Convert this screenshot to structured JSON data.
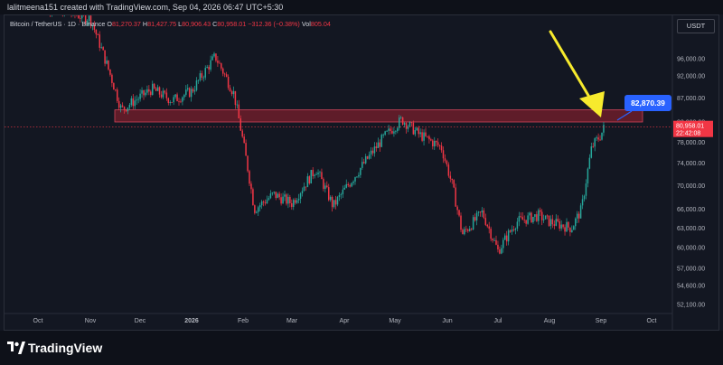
{
  "header": {
    "created_text": "lalitmeena151 created with TradingView.com, Sep 04, 2026 06:47 UTC+5:30"
  },
  "symbol_bar": {
    "symbol": "Bitcoin / TetherUS · 1D · Binance",
    "o_label": "O",
    "o_value": "81,270.37",
    "h_label": "H",
    "h_value": "81,427.75",
    "l_label": "L",
    "l_value": "80,906.43",
    "c_label": "C",
    "c_value": "80,958.01",
    "change": "−312.36 (−0.38%)",
    "vol_label": "Vol",
    "vol_value": "805.04"
  },
  "currency": "USDT",
  "annotations": {
    "target_label": "82,870.39",
    "last_price": "80,958.01",
    "countdown": "22:42:08"
  },
  "footer": {
    "brand": "TradingView"
  },
  "colors": {
    "up": "#26a69a",
    "down": "#f23645",
    "zone": "#7a1f2c",
    "arrow": "#f7ea2d",
    "callout": "#2962ff"
  },
  "chart_data": {
    "type": "candlestick",
    "x_ticks": [
      "Oct",
      "Nov",
      "Dec",
      "2026",
      "Feb",
      "Mar",
      "Apr",
      "May",
      "Jun",
      "Jul",
      "Aug",
      "Sep",
      "Oct"
    ],
    "y_ticks": [
      "96,000.00",
      "92,000.00",
      "87,000.00",
      "82,000.00",
      "78,000.00",
      "74,000.00",
      "70,000.00",
      "66,000.00",
      "63,000.00",
      "60,000.00",
      "57,000.00",
      "54,600.00",
      "52,100.00"
    ],
    "y_scale": "log",
    "y_range": [
      50000,
      116000
    ],
    "last_price": 80958.01,
    "resistance_zone": [
      82000,
      84500
    ],
    "target": 82870.39,
    "close_path": [
      {
        "x": "Oct",
        "y": 110000
      },
      {
        "x": "Nov",
        "y": 106000
      },
      {
        "x": "Nov 20",
        "y": 84500
      },
      {
        "x": "Dec 8",
        "y": 89000
      },
      {
        "x": "Dec 20",
        "y": 86500
      },
      {
        "x": "2026",
        "y": 88500
      },
      {
        "x": "Jan 15",
        "y": 96500
      },
      {
        "x": "Jan 26",
        "y": 88000
      },
      {
        "x": "Feb",
        "y": 78000
      },
      {
        "x": "Feb 8",
        "y": 66000
      },
      {
        "x": "Feb 20",
        "y": 68500
      },
      {
        "x": "Mar",
        "y": 67000
      },
      {
        "x": "Mar 15",
        "y": 73000
      },
      {
        "x": "Mar 25",
        "y": 66500
      },
      {
        "x": "Apr 8",
        "y": 72000
      },
      {
        "x": "Apr 25",
        "y": 79000
      },
      {
        "x": "May 5",
        "y": 82500
      },
      {
        "x": "May 15",
        "y": 79500
      },
      {
        "x": "May 28",
        "y": 77000
      },
      {
        "x": "Jun 4",
        "y": 70000
      },
      {
        "x": "Jun 10",
        "y": 62000
      },
      {
        "x": "Jun 22",
        "y": 65500
      },
      {
        "x": "Jul",
        "y": 59500
      },
      {
        "x": "Jul 12",
        "y": 64000
      },
      {
        "x": "Jul 25",
        "y": 65000
      },
      {
        "x": "Aug",
        "y": 64000
      },
      {
        "x": "Aug 14",
        "y": 63000
      },
      {
        "x": "Aug 20",
        "y": 66000
      },
      {
        "x": "Aug 26",
        "y": 77000
      },
      {
        "x": "Sep",
        "y": 79500
      },
      {
        "x": "Sep 3",
        "y": 80958
      }
    ]
  }
}
